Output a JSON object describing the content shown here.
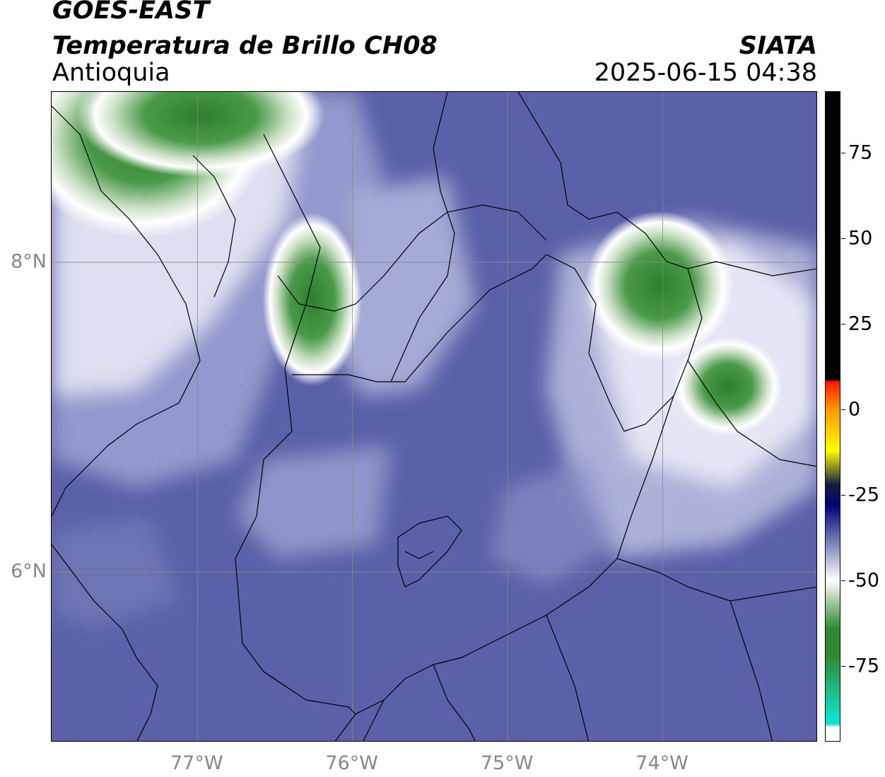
{
  "header": {
    "satellite": "GOES-EAST",
    "product": "Temperatura de Brillo CH08",
    "region": "Antioquia",
    "organization": "SIATA",
    "timestamp": "2025-06-15 04:38"
  },
  "map": {
    "lon_range": [
      -77.94,
      -73.0
    ],
    "lat_range": [
      4.9,
      9.1
    ],
    "gridlines": true,
    "lat_labels": [
      {
        "value": 8,
        "text": "8°N"
      },
      {
        "value": 6,
        "text": "6°N"
      }
    ],
    "lon_labels": [
      {
        "value": -77,
        "text": "77°W"
      },
      {
        "value": -76,
        "text": "76°W"
      },
      {
        "value": -75,
        "text": "75°W"
      },
      {
        "value": -74,
        "text": "74°W"
      }
    ],
    "cold_cloud_cores": [
      {
        "lon": -76.26,
        "lat": 7.76,
        "rx": 0.2,
        "ry": 0.35,
        "temp": -70
      },
      {
        "lon": -74.02,
        "lat": 7.85,
        "rx": 0.3,
        "ry": 0.3,
        "temp": -68
      },
      {
        "lon": -77.35,
        "lat": 8.8,
        "rx": 0.5,
        "ry": 0.4,
        "temp": -70
      },
      {
        "lon": -76.98,
        "lat": 8.95,
        "rx": 0.5,
        "ry": 0.25,
        "temp": -75
      },
      {
        "lon": -73.58,
        "lat": 7.2,
        "rx": 0.22,
        "ry": 0.2,
        "temp": -65
      }
    ]
  },
  "colorbar": {
    "ticks": [
      {
        "value": 75,
        "text": "75"
      },
      {
        "value": 50,
        "text": "50"
      },
      {
        "value": 25,
        "text": "25"
      },
      {
        "value": 0,
        "text": "0"
      },
      {
        "value": -25,
        "text": "-25"
      },
      {
        "value": -50,
        "text": "-50"
      },
      {
        "value": -75,
        "text": "-75"
      }
    ],
    "range": [
      -97,
      93
    ],
    "colors": {
      "hot": "#000000",
      "red": "#ff1a00",
      "orange": "#ff9900",
      "yellow": "#ffff00",
      "dark": "#1a1a40",
      "navy": "#00007a",
      "blue": "#5a5fa6",
      "white": "#ffffff",
      "green": "#2f8a2f",
      "teal": "#10e0c8"
    }
  }
}
